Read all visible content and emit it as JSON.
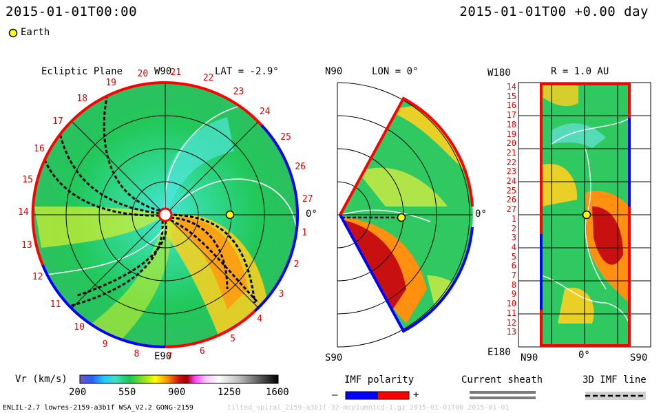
{
  "header": {
    "left_time": "2015-01-01T00:00",
    "right_time": "2015-01-01T00 +0.00 day",
    "legend_earth": "Earth"
  },
  "ecliptic": {
    "title": "Ecliptic Plane",
    "top_label": "W90",
    "bottom_label": "E90",
    "lat": "LAT = -2.9°",
    "right_label": "0°",
    "carrington": [
      "1",
      "2",
      "3",
      "4",
      "5",
      "6",
      "7",
      "8",
      "9",
      "10",
      "11",
      "12",
      "13",
      "14",
      "15",
      "16",
      "17",
      "18",
      "19",
      "20",
      "21",
      "22",
      "23",
      "24",
      "25",
      "26",
      "27"
    ]
  },
  "meridional": {
    "top_label": "N90",
    "lon": "LON = 0°",
    "right_label": "0°",
    "bottom_label": "S90"
  },
  "map": {
    "top_left": "W180",
    "radius": "R = 1.0 AU",
    "bottom_left": "E180",
    "x_ticks": [
      "N90",
      "0°",
      "S90"
    ],
    "rows": [
      "14",
      "15",
      "16",
      "17",
      "18",
      "19",
      "20",
      "21",
      "22",
      "23",
      "24",
      "25",
      "26",
      "27",
      "1",
      "2",
      "3",
      "4",
      "5",
      "6",
      "7",
      "8",
      "9",
      "10",
      "11",
      "12",
      "13"
    ]
  },
  "colorbar": {
    "label": "Vr (km/s)",
    "ticks": [
      "200",
      "550",
      "900",
      "1250",
      "1600"
    ],
    "range": [
      200,
      1600
    ]
  },
  "legends": {
    "imf_title": "IMF polarity",
    "imf_minus": "–",
    "imf_plus": "+",
    "sheath_title": "Current sheath",
    "imf3d_title": "3D IMF line"
  },
  "footer": {
    "left": "ENLIL-2.7 lowres-2159-a3b1f WSA_V2.2 GONG-2159",
    "right": "tilted_spiral_2159-a3b1f-32-mcp1umn1cd-1.gz  2015-01-01T00  2015-01-01"
  },
  "colors": {
    "polarity_negative": "#0000ff",
    "polarity_positive": "#ff0000",
    "earth": "#ffff00"
  }
}
